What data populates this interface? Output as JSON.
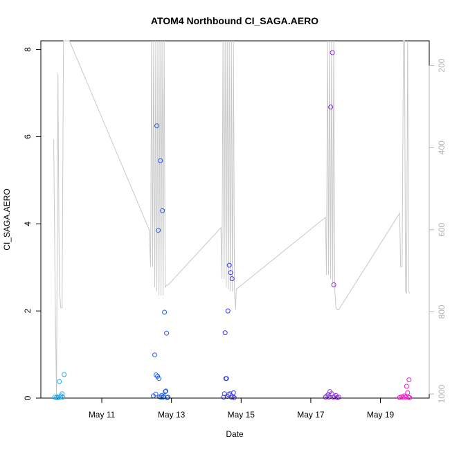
{
  "chart_data": {
    "type": "scatter",
    "title": "ATOM4 Northbound CI_SAGA.AERO",
    "xlabel": "Date",
    "ylabel": "CI_SAGA.AERO",
    "x_unit": "days since May 9 00:00",
    "xlim": [
      9.25,
      20.4
    ],
    "ylim": [
      0,
      8.2
    ],
    "x_ticks": [
      {
        "value": 11,
        "label": "May 11"
      },
      {
        "value": 13,
        "label": "May 13"
      },
      {
        "value": 15,
        "label": "May 15"
      },
      {
        "value": 17,
        "label": "May 17"
      },
      {
        "value": 19,
        "label": "May 19"
      }
    ],
    "y_ticks": [
      0,
      2,
      4,
      6,
      8
    ],
    "right_axis": {
      "ylim_reversed": [
        1010,
        140
      ],
      "ticks": [
        200,
        400,
        600,
        800,
        1000
      ],
      "color": "#b3b3b3"
    },
    "grid": false,
    "points": [
      {
        "x": 9.65,
        "y": 0.02,
        "color": "#22a8ee"
      },
      {
        "x": 9.7,
        "y": 0.01,
        "color": "#22a8ee"
      },
      {
        "x": 9.72,
        "y": 0.03,
        "color": "#22a8ee"
      },
      {
        "x": 9.75,
        "y": 0.01,
        "color": "#22a8ee"
      },
      {
        "x": 9.78,
        "y": 0.38,
        "color": "#22a8ee"
      },
      {
        "x": 9.8,
        "y": 0.02,
        "color": "#22a8ee"
      },
      {
        "x": 9.83,
        "y": 0.05,
        "color": "#22a8ee"
      },
      {
        "x": 9.86,
        "y": 0.1,
        "color": "#22a8ee"
      },
      {
        "x": 9.88,
        "y": 0.02,
        "color": "#22a8ee"
      },
      {
        "x": 9.92,
        "y": 0.54,
        "color": "#22a8ee"
      },
      {
        "x": 12.48,
        "y": 0.05,
        "color": "#1f5cf0"
      },
      {
        "x": 12.52,
        "y": 0.99,
        "color": "#1f5cf0"
      },
      {
        "x": 12.55,
        "y": 0.09,
        "color": "#1f5cf0"
      },
      {
        "x": 12.56,
        "y": 0.53,
        "color": "#1f5cf0"
      },
      {
        "x": 12.58,
        "y": 6.25,
        "color": "#1f5cf0"
      },
      {
        "x": 12.6,
        "y": 0.5,
        "color": "#1f5cf0"
      },
      {
        "x": 12.62,
        "y": 3.85,
        "color": "#1f5cf0"
      },
      {
        "x": 12.64,
        "y": 0.45,
        "color": "#1f5cf0"
      },
      {
        "x": 12.66,
        "y": 0.03,
        "color": "#1f5cf0"
      },
      {
        "x": 12.68,
        "y": 5.45,
        "color": "#1f5cf0"
      },
      {
        "x": 12.7,
        "y": 0.02,
        "color": "#1f5cf0"
      },
      {
        "x": 12.72,
        "y": 0.06,
        "color": "#1f5cf0"
      },
      {
        "x": 12.74,
        "y": 4.3,
        "color": "#1f5cf0"
      },
      {
        "x": 12.76,
        "y": 0.02,
        "color": "#1f5cf0"
      },
      {
        "x": 12.78,
        "y": 0.04,
        "color": "#1f5cf0"
      },
      {
        "x": 12.8,
        "y": 1.97,
        "color": "#1f5cf0"
      },
      {
        "x": 12.82,
        "y": 0.15,
        "color": "#1f5cf0"
      },
      {
        "x": 12.84,
        "y": 0.16,
        "color": "#1f5cf0"
      },
      {
        "x": 12.86,
        "y": 1.49,
        "color": "#1f5cf0"
      },
      {
        "x": 12.88,
        "y": 0.01,
        "color": "#1f5cf0"
      },
      {
        "x": 12.9,
        "y": 0.02,
        "color": "#1f5cf0"
      },
      {
        "x": 14.5,
        "y": 0.02,
        "color": "#3a3af0"
      },
      {
        "x": 14.52,
        "y": 0.1,
        "color": "#3a3af0"
      },
      {
        "x": 14.54,
        "y": 1.5,
        "color": "#3a3af0"
      },
      {
        "x": 14.56,
        "y": 0.45,
        "color": "#3a3af0"
      },
      {
        "x": 14.58,
        "y": 0.45,
        "color": "#3a3af0"
      },
      {
        "x": 14.6,
        "y": 0.04,
        "color": "#3a3af0"
      },
      {
        "x": 14.62,
        "y": 2.0,
        "color": "#3a3af0"
      },
      {
        "x": 14.64,
        "y": 0.08,
        "color": "#3a3af0"
      },
      {
        "x": 14.66,
        "y": 3.05,
        "color": "#3a3af0"
      },
      {
        "x": 14.68,
        "y": 0.1,
        "color": "#3a3af0"
      },
      {
        "x": 14.7,
        "y": 2.88,
        "color": "#3a3af0"
      },
      {
        "x": 14.72,
        "y": 0.02,
        "color": "#3a3af0"
      },
      {
        "x": 14.74,
        "y": 2.74,
        "color": "#3a3af0"
      },
      {
        "x": 14.76,
        "y": 0.03,
        "color": "#3a3af0"
      },
      {
        "x": 14.78,
        "y": 0.12,
        "color": "#3a3af0"
      },
      {
        "x": 14.8,
        "y": 0.01,
        "color": "#3a3af0"
      },
      {
        "x": 17.42,
        "y": 0.02,
        "color": "#8a2be2"
      },
      {
        "x": 17.46,
        "y": 0.05,
        "color": "#8a2be2"
      },
      {
        "x": 17.5,
        "y": 0.08,
        "color": "#8a2be2"
      },
      {
        "x": 17.52,
        "y": 0.02,
        "color": "#8a2be2"
      },
      {
        "x": 17.55,
        "y": 0.15,
        "color": "#8a2be2"
      },
      {
        "x": 17.57,
        "y": 6.68,
        "color": "#8a2be2"
      },
      {
        "x": 17.6,
        "y": 0.1,
        "color": "#8a2be2"
      },
      {
        "x": 17.62,
        "y": 7.93,
        "color": "#8a2be2"
      },
      {
        "x": 17.64,
        "y": 0.02,
        "color": "#8a2be2"
      },
      {
        "x": 17.66,
        "y": 2.6,
        "color": "#8a2be2"
      },
      {
        "x": 17.68,
        "y": 0.03,
        "color": "#8a2be2"
      },
      {
        "x": 17.72,
        "y": 0.06,
        "color": "#8a2be2"
      },
      {
        "x": 17.76,
        "y": 0.01,
        "color": "#8a2be2"
      },
      {
        "x": 17.8,
        "y": 0.02,
        "color": "#8a2be2"
      },
      {
        "x": 19.55,
        "y": 0.01,
        "color": "#e81ec8"
      },
      {
        "x": 19.6,
        "y": 0.03,
        "color": "#e81ec8"
      },
      {
        "x": 19.64,
        "y": 0.02,
        "color": "#e81ec8"
      },
      {
        "x": 19.68,
        "y": 0.05,
        "color": "#e81ec8"
      },
      {
        "x": 19.72,
        "y": 0.02,
        "color": "#e81ec8"
      },
      {
        "x": 19.75,
        "y": 0.27,
        "color": "#e81ec8"
      },
      {
        "x": 19.78,
        "y": 0.12,
        "color": "#e81ec8"
      },
      {
        "x": 19.8,
        "y": 0.02,
        "color": "#e81ec8"
      },
      {
        "x": 19.82,
        "y": 0.42,
        "color": "#e81ec8"
      },
      {
        "x": 19.84,
        "y": 0.01,
        "color": "#e81ec8"
      }
    ],
    "altitude_line": {
      "axis": "right",
      "color": "#c8c8c8",
      "x": [
        9.62,
        9.66,
        9.7,
        9.74,
        9.78,
        9.82,
        9.86,
        9.9,
        9.94,
        9.98,
        10.02,
        10.07,
        12.36,
        12.4,
        12.43,
        12.46,
        12.49,
        12.52,
        12.55,
        12.58,
        12.61,
        12.64,
        12.67,
        12.7,
        12.73,
        12.76,
        12.79,
        12.82,
        12.86,
        12.9,
        14.42,
        14.45,
        14.48,
        14.51,
        14.54,
        14.57,
        14.6,
        14.63,
        14.66,
        14.69,
        14.72,
        14.75,
        14.78,
        14.81,
        14.84,
        14.86,
        17.42,
        17.45,
        17.48,
        17.51,
        17.54,
        17.57,
        17.6,
        17.63,
        17.66,
        17.69,
        17.72,
        17.76,
        17.8,
        19.55,
        19.58,
        19.62,
        19.66,
        19.69,
        19.72,
        19.75,
        19.78,
        19.81,
        19.84
      ],
      "y": [
        380,
        745,
        1010,
        220,
        745,
        790,
        790,
        140,
        140,
        140,
        140,
        140,
        600,
        690,
        140,
        690,
        140,
        740,
        140,
        750,
        140,
        760,
        140,
        760,
        140,
        760,
        140,
        740,
        735,
        735,
        595,
        720,
        140,
        720,
        140,
        740,
        140,
        745,
        140,
        750,
        140,
        750,
        140,
        750,
        795,
        745,
        570,
        710,
        140,
        710,
        140,
        720,
        140,
        730,
        140,
        745,
        790,
        795,
        795,
        560,
        690,
        690,
        140,
        140,
        750,
        755,
        140,
        750,
        755
      ]
    }
  }
}
